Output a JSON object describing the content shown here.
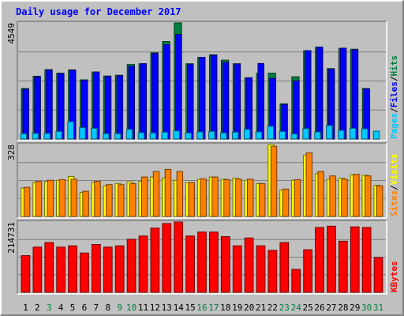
{
  "chart_data": [
    {
      "type": "bar",
      "title": "Daily usage for December 2017",
      "panel": "hits-files-pages",
      "ylabel_parts": [
        "Pages",
        "Files",
        "Hits"
      ],
      "ylabel_seps": [
        "/",
        "/"
      ],
      "max_label": "4549",
      "ylim": [
        0,
        4549
      ],
      "categories": [
        "1",
        "2",
        "3",
        "4",
        "5",
        "6",
        "7",
        "8",
        "9",
        "10",
        "11",
        "12",
        "13",
        "14",
        "15",
        "16",
        "17",
        "18",
        "19",
        "20",
        "21",
        "22",
        "23",
        "24",
        "25",
        "26",
        "27",
        "28",
        "29",
        "30",
        "31"
      ],
      "series": [
        {
          "name": "Hits",
          "color": "#008040",
          "values": [
            1980,
            2460,
            2720,
            2580,
            2710,
            2320,
            2630,
            2470,
            2500,
            2920,
            2950,
            3380,
            3820,
            4549,
            2950,
            3200,
            3300,
            3090,
            2950,
            2400,
            2580,
            2580,
            1380,
            2440,
            3460,
            3600,
            2760,
            3550,
            3520,
            1980,
            0
          ]
        },
        {
          "name": "Files",
          "color": "#0000ff",
          "values": [
            1950,
            2440,
            2700,
            2560,
            2700,
            2300,
            2620,
            2450,
            2480,
            2850,
            2950,
            3350,
            3700,
            4100,
            2930,
            3200,
            3280,
            3000,
            2940,
            2400,
            2960,
            2380,
            1350,
            2280,
            3460,
            3600,
            2740,
            3560,
            3500,
            1960,
            0
          ]
        },
        {
          "name": "Pages",
          "color": "#00c8ff",
          "values": [
            210,
            220,
            220,
            300,
            680,
            450,
            420,
            210,
            210,
            380,
            250,
            240,
            270,
            320,
            240,
            280,
            300,
            240,
            270,
            380,
            280,
            500,
            300,
            200,
            410,
            280,
            530,
            340,
            420,
            400,
            310
          ]
        }
      ]
    },
    {
      "type": "bar",
      "panel": "visits-sites",
      "ylabel_parts": [
        "Sites",
        "Visits"
      ],
      "ylabel_seps": [
        "/"
      ],
      "max_label": "328",
      "ylim": [
        0,
        328
      ],
      "categories": [
        "1",
        "2",
        "3",
        "4",
        "5",
        "6",
        "7",
        "8",
        "9",
        "10",
        "11",
        "12",
        "13",
        "14",
        "15",
        "16",
        "17",
        "18",
        "19",
        "20",
        "21",
        "22",
        "23",
        "24",
        "25",
        "26",
        "27",
        "28",
        "29",
        "30",
        "31"
      ],
      "series": [
        {
          "name": "Visits",
          "color": "#ffff00",
          "values": [
            130,
            155,
            160,
            165,
            182,
            110,
            155,
            140,
            150,
            158,
            160,
            180,
            175,
            165,
            155,
            170,
            180,
            170,
            175,
            165,
            150,
            328,
            120,
            165,
            280,
            195,
            170,
            175,
            190,
            188,
            142
          ]
        },
        {
          "name": "Sites",
          "color": "#ff8000",
          "values": [
            133,
            160,
            165,
            168,
            170,
            115,
            160,
            145,
            145,
            150,
            180,
            205,
            215,
            205,
            155,
            172,
            180,
            168,
            170,
            170,
            150,
            320,
            125,
            168,
            290,
            205,
            185,
            170,
            192,
            185,
            140
          ]
        }
      ]
    },
    {
      "type": "bar",
      "panel": "kbytes",
      "ylabel_parts": [
        "KBytes"
      ],
      "ylabel_seps": [],
      "max_label": "214731",
      "ylim": [
        0,
        214731
      ],
      "categories": [
        "1",
        "2",
        "3",
        "4",
        "5",
        "6",
        "7",
        "8",
        "9",
        "10",
        "11",
        "12",
        "13",
        "14",
        "15",
        "16",
        "17",
        "18",
        "19",
        "20",
        "21",
        "22",
        "23",
        "24",
        "25",
        "26",
        "27",
        "28",
        "29",
        "30",
        "31"
      ],
      "series": [
        {
          "name": "KBytes",
          "color": "#ff0000",
          "values": [
            112000,
            138000,
            152000,
            138000,
            142000,
            120000,
            146000,
            138000,
            142000,
            162000,
            172000,
            196000,
            210000,
            214731,
            172000,
            184000,
            184000,
            170000,
            142000,
            166000,
            142000,
            128000,
            152000,
            70000,
            130000,
            198000,
            202000,
            156000,
            200000,
            198000,
            106000
          ]
        }
      ]
    }
  ],
  "x_highlight_days": [
    "3",
    "9",
    "10",
    "16",
    "17",
    "23",
    "24",
    "30",
    "31"
  ],
  "colors": {
    "background": "#c0c0c0",
    "plot_bg": "#c0c0c0",
    "title": "#0000ff",
    "grid": "#808080",
    "axis_text": "#000000",
    "day_normal": "#000000",
    "day_weekend": "#008040",
    "bevel_light": "#ffffff",
    "bevel_dark": "#808080"
  }
}
